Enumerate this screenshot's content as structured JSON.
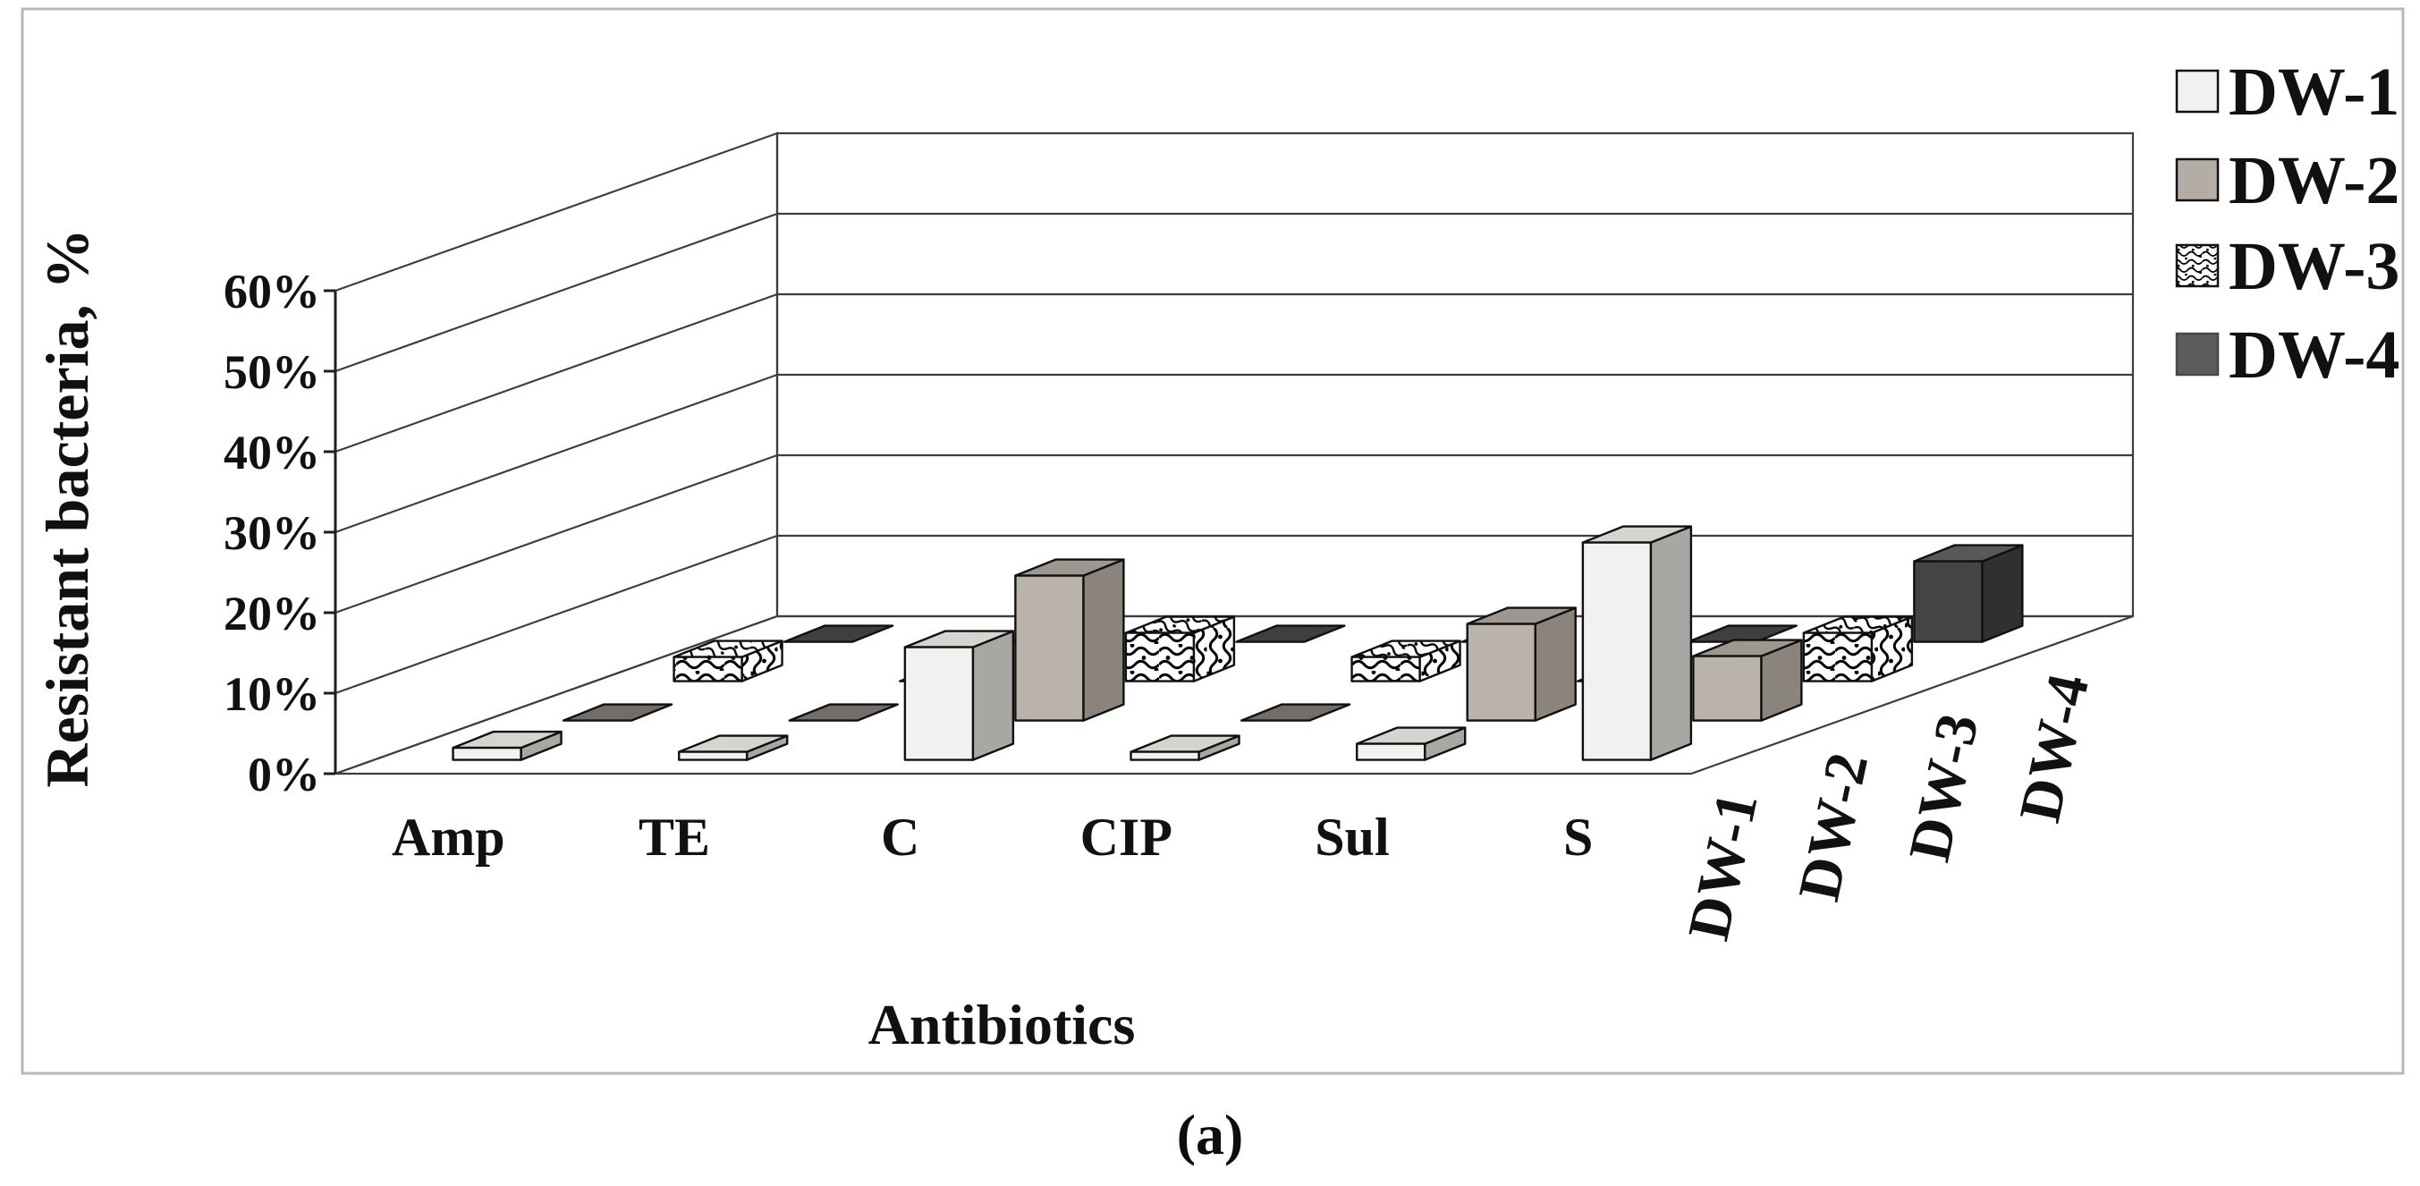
{
  "figure": {
    "caption": "(a)",
    "border_color": "#b8b8b8",
    "background": "#ffffff",
    "text_color": "#111111",
    "grid_color": "#3d3d3d",
    "axis_color": "#1f1f1f",
    "bar_outline_color": "#101010"
  },
  "chart_data": {
    "type": "bar",
    "subtype": "3d-column",
    "title": "",
    "xlabel": "Antibiotics",
    "ylabel": "Resistant bacteria, %",
    "y_axis": {
      "min": 0,
      "max": 60,
      "tick_step": 10,
      "tick_labels": [
        "0%",
        "10%",
        "20%",
        "30%",
        "40%",
        "50%",
        "60%"
      ]
    },
    "categories": [
      "Amp",
      "TE",
      "C",
      "CIP",
      "Sul",
      "S"
    ],
    "depth_categories": [
      "DW-1",
      "DW-2",
      "DW-3",
      "DW-4"
    ],
    "series": [
      {
        "name": "DW-1",
        "style": "solid",
        "values": [
          1.5,
          1,
          14,
          1,
          2,
          27
        ],
        "colors": {
          "front": "#f2f1ef",
          "top": "#d6d4d1",
          "side": "#a9a7a4",
          "flat_top": "#c7c5c2",
          "legend": "#f2f1ef"
        }
      },
      {
        "name": "DW-2",
        "style": "solid",
        "values": [
          0,
          0,
          18,
          0,
          12,
          8
        ],
        "colors": {
          "front": "#b9b3ac",
          "top": "#9d978f",
          "side": "#8a847d",
          "flat_top": "#726d68",
          "legend": "#b3ada6"
        }
      },
      {
        "name": "DW-3",
        "style": "wavy-pattern",
        "values": [
          3,
          0,
          6,
          3,
          0,
          6
        ],
        "colors": {
          "pattern_bg": "#ffffff",
          "pattern_fg": "#000000"
        }
      },
      {
        "name": "DW-4",
        "style": "solid",
        "values": [
          0,
          0,
          0,
          0,
          0,
          10
        ],
        "colors": {
          "front": "#464442",
          "top": "#5a5856",
          "side": "#31302f",
          "flat_top": "#413f3e",
          "legend": "#5e5c5a"
        }
      }
    ],
    "legend": {
      "position": "top-right",
      "labels": [
        "DW-1",
        "DW-2",
        "DW-3",
        "DW-4"
      ]
    },
    "grid": true
  }
}
